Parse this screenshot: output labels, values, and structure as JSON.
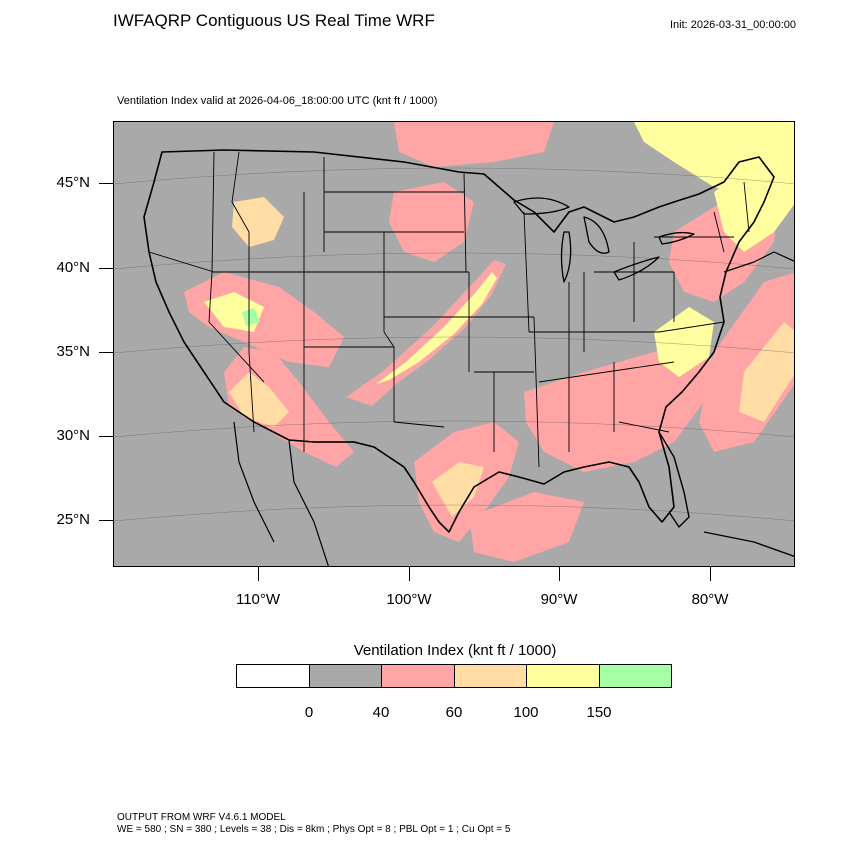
{
  "title": "IWFAQRP Contiguous US Real Time WRF",
  "init_time": "Init: 2026-03-31_00:00:00",
  "subtitle": "Ventilation Index valid at 2026-04-06_18:00:00 UTC   (knt ft / 1000)",
  "map": {
    "lat_labels": [
      "45°N",
      "40°N",
      "35°N",
      "30°N",
      "25°N"
    ],
    "lon_labels": [
      "110°W",
      "100°W",
      "90°W",
      "80°W"
    ],
    "base_color": "#a9a9a9",
    "water_color": "#a9a9a9"
  },
  "colorbar": {
    "title": "Ventilation Index  (knt ft / 1000)",
    "levels": [
      "0",
      "40",
      "60",
      "100",
      "150"
    ],
    "colors": [
      "#ffffff",
      "#a9a9a9",
      "#ffa5a5",
      "#ffdda5",
      "#ffff9f",
      "#a5ffa5"
    ]
  },
  "footer": {
    "line1": "OUTPUT FROM WRF V4.6.1 MODEL",
    "line2": "WE = 580 ; SN = 380 ; Levels = 38 ; Dis = 8km ; Phys Opt = 8 ; PBL Opt = 1 ; Cu Opt = 5"
  }
}
